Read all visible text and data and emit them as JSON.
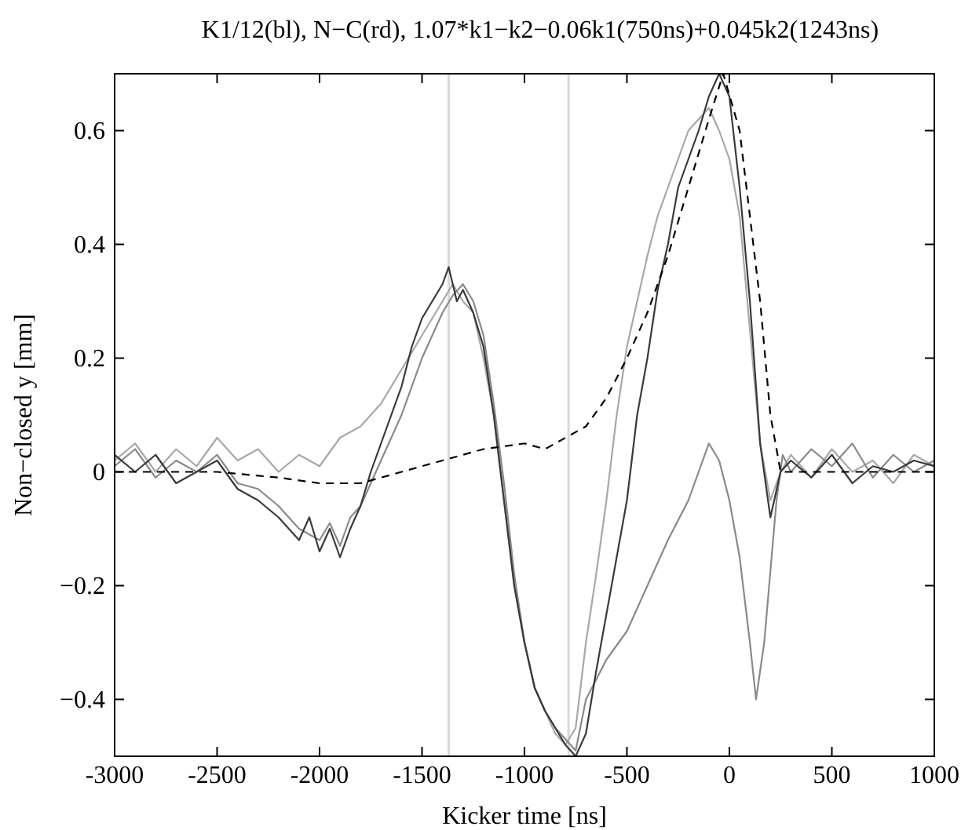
{
  "chart_data": {
    "type": "line",
    "title": "K1/12(bl), N−C(rd), 1.07*k1−k2−0.06k1(750ns)+0.045k2(1243ns)",
    "xlabel": "Kicker time [ns]",
    "ylabel": "Non−closed y [mm]",
    "xlim": [
      -3000,
      1000
    ],
    "ylim": [
      -0.5,
      0.7
    ],
    "xticks": [
      -3000,
      -2500,
      -2000,
      -1500,
      -1000,
      -500,
      0,
      500,
      1000
    ],
    "yticks": [
      {
        "value": -0.4,
        "label": "−0.4"
      },
      {
        "value": -0.2,
        "label": "−0.2"
      },
      0,
      0.2,
      0.4,
      0.6
    ],
    "grid": false,
    "marker": "none",
    "ref_lines": [
      {
        "axis": "x",
        "value": -1370,
        "color": "#d9d9d9"
      },
      {
        "axis": "x",
        "value": -785,
        "color": "#d9d9d9"
      }
    ],
    "series": [
      {
        "color": "#a8a8a8",
        "x": [
          -3000,
          -2900,
          -2800,
          -2700,
          -2600,
          -2500,
          -2400,
          -2300,
          -2200,
          -2100,
          -2000,
          -1900,
          -1800,
          -1700,
          -1600,
          -1500,
          -1450,
          -1400,
          -1350,
          -1300,
          -1250,
          -1200,
          -1150,
          -1100,
          -1050,
          -1000,
          -950,
          -900,
          -850,
          -800,
          -750,
          -700,
          -650,
          -600,
          -550,
          -500,
          -450,
          -400,
          -350,
          -300,
          -250,
          -200,
          -150,
          -100,
          -50,
          0,
          50,
          100,
          150,
          200,
          250,
          300,
          400,
          500,
          600,
          700,
          800,
          900,
          1000
        ],
        "values": [
          0.02,
          0.05,
          0.0,
          0.04,
          0.01,
          0.06,
          0.02,
          0.04,
          0.0,
          0.03,
          0.01,
          0.06,
          0.08,
          0.12,
          0.18,
          0.24,
          0.27,
          0.3,
          0.33,
          0.3,
          0.28,
          0.2,
          0.1,
          -0.05,
          -0.2,
          -0.3,
          -0.38,
          -0.42,
          -0.46,
          -0.48,
          -0.45,
          -0.3,
          -0.18,
          -0.05,
          0.1,
          0.22,
          0.3,
          0.38,
          0.45,
          0.5,
          0.55,
          0.6,
          0.62,
          0.64,
          0.6,
          0.55,
          0.45,
          0.25,
          0.05,
          -0.05,
          0.0,
          0.03,
          -0.01,
          0.04,
          0.0,
          0.02,
          -0.02,
          0.03,
          0.01
        ]
      },
      {
        "color": "#8a8a8a",
        "x": [
          -3000,
          -2900,
          -2800,
          -2700,
          -2600,
          -2500,
          -2400,
          -2300,
          -2200,
          -2100,
          -2000,
          -1950,
          -1900,
          -1850,
          -1800,
          -1750,
          -1700,
          -1600,
          -1500,
          -1400,
          -1350,
          -1300,
          -1250,
          -1200,
          -1150,
          -1100,
          -1050,
          -1000,
          -950,
          -900,
          -850,
          -800,
          -750,
          -700,
          -600,
          -500,
          -400,
          -300,
          -200,
          -150,
          -100,
          -50,
          0,
          50,
          100,
          130,
          170,
          230,
          260,
          300,
          400,
          500,
          600,
          700,
          800,
          900,
          1000
        ],
        "values": [
          0.01,
          0.04,
          -0.01,
          0.02,
          0.0,
          0.03,
          -0.02,
          -0.03,
          -0.06,
          -0.1,
          -0.12,
          -0.09,
          -0.13,
          -0.08,
          -0.06,
          -0.02,
          0.02,
          0.1,
          0.2,
          0.28,
          0.31,
          0.33,
          0.3,
          0.24,
          0.12,
          -0.02,
          -0.18,
          -0.3,
          -0.38,
          -0.42,
          -0.45,
          -0.47,
          -0.49,
          -0.4,
          -0.33,
          -0.28,
          -0.2,
          -0.12,
          -0.05,
          0.0,
          0.05,
          0.02,
          -0.05,
          -0.15,
          -0.3,
          -0.4,
          -0.3,
          -0.05,
          0.03,
          0.0,
          0.04,
          0.01,
          0.05,
          -0.01,
          0.03,
          0.0,
          0.02
        ]
      },
      {
        "color": "#3a3a3a",
        "x": [
          -3000,
          -2900,
          -2800,
          -2700,
          -2600,
          -2500,
          -2400,
          -2300,
          -2200,
          -2100,
          -2050,
          -2000,
          -1950,
          -1900,
          -1850,
          -1800,
          -1750,
          -1700,
          -1650,
          -1600,
          -1550,
          -1500,
          -1450,
          -1400,
          -1370,
          -1330,
          -1300,
          -1250,
          -1200,
          -1150,
          -1100,
          -1050,
          -1000,
          -950,
          -900,
          -850,
          -800,
          -750,
          -700,
          -650,
          -600,
          -550,
          -500,
          -450,
          -400,
          -350,
          -300,
          -250,
          -200,
          -150,
          -100,
          -50,
          0,
          50,
          100,
          150,
          200,
          250,
          300,
          400,
          500,
          600,
          700,
          800,
          900,
          1000
        ],
        "values": [
          0.03,
          0.0,
          0.03,
          -0.02,
          0.0,
          0.02,
          -0.03,
          -0.05,
          -0.08,
          -0.12,
          -0.08,
          -0.14,
          -0.1,
          -0.15,
          -0.1,
          -0.06,
          0.0,
          0.05,
          0.1,
          0.15,
          0.22,
          0.27,
          0.3,
          0.33,
          0.36,
          0.3,
          0.32,
          0.28,
          0.22,
          0.1,
          -0.05,
          -0.2,
          -0.3,
          -0.38,
          -0.42,
          -0.45,
          -0.48,
          -0.5,
          -0.46,
          -0.35,
          -0.25,
          -0.15,
          -0.05,
          0.1,
          0.2,
          0.32,
          0.4,
          0.5,
          0.55,
          0.6,
          0.66,
          0.7,
          0.66,
          0.5,
          0.3,
          0.05,
          -0.08,
          0.0,
          0.02,
          -0.01,
          0.03,
          -0.02,
          0.01,
          0.0,
          0.02,
          0.01
        ]
      },
      {
        "color": "#000000",
        "line_style": "dashed",
        "x": [
          -3000,
          -2500,
          -2200,
          -2000,
          -1800,
          -1600,
          -1400,
          -1200,
          -1000,
          -900,
          -800,
          -700,
          -600,
          -500,
          -400,
          -300,
          -200,
          -100,
          -30,
          50,
          100,
          150,
          200,
          250,
          300,
          1000
        ],
        "values": [
          0.0,
          0.0,
          -0.01,
          -0.02,
          -0.02,
          0.0,
          0.02,
          0.04,
          0.05,
          0.04,
          0.06,
          0.08,
          0.13,
          0.2,
          0.28,
          0.38,
          0.5,
          0.62,
          0.7,
          0.6,
          0.45,
          0.3,
          0.1,
          0.0,
          0.0,
          0.0
        ]
      }
    ]
  }
}
